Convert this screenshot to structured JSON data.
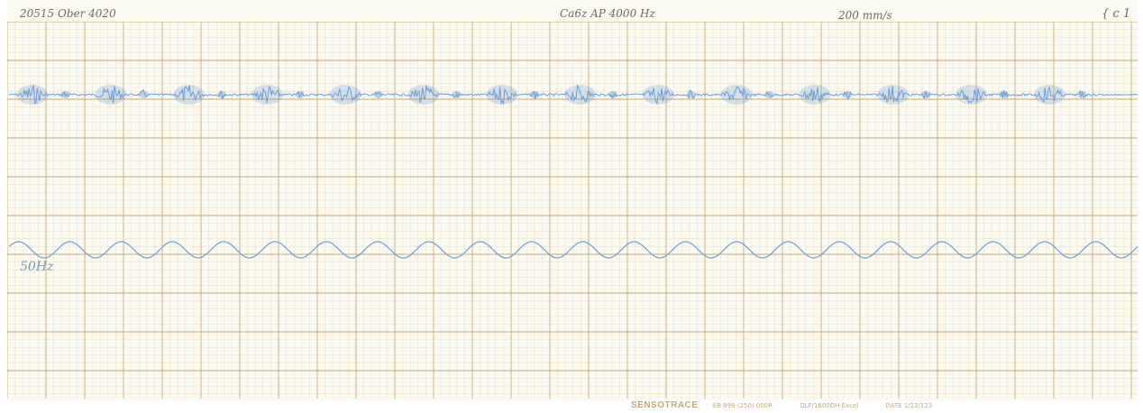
{
  "header": {
    "left_note": "20515 Ober 4020",
    "center_note": "Ca6z  AP 4000 Hz",
    "speed_note": "200 mm/s",
    "right_note": "{ c 1"
  },
  "trace_label": "50Hz",
  "footer": {
    "brand": "SENSOTRACE",
    "item1": "EB 999 (250)  000R",
    "item2": "DLF/1600DH Excel",
    "item3": "DATE 1/23/123"
  },
  "colors": {
    "paper": "#fbfaf2",
    "grid_minor": "#e8dcb7",
    "grid_major": "#c9a96f",
    "trace": "#6e9fd6"
  },
  "chart_data": {
    "type": "line",
    "title": "",
    "xlabel": "",
    "ylabel": "",
    "series": [
      {
        "name": "50Hz",
        "kind": "reference-sine",
        "cycles_visible": 22,
        "amplitude": 1.0
      },
      {
        "name": "",
        "kind": "burst-signal",
        "burst_count": 14,
        "burst_amplitude": 1.0,
        "between_amplitude": 0.2,
        "trailing_flat": true
      }
    ],
    "grid": true
  }
}
